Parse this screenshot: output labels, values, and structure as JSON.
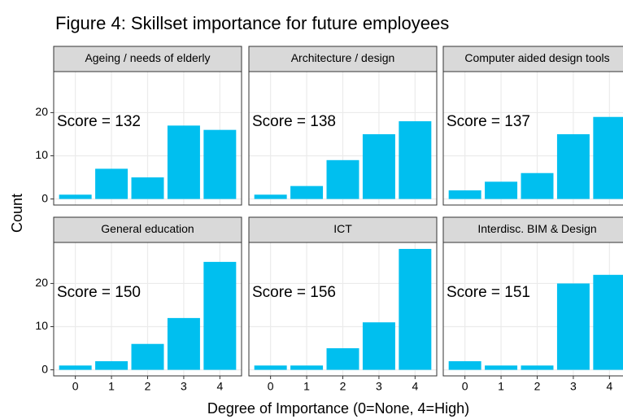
{
  "title": "Figure 4: Skillset importance for future employees",
  "xlabel": "Degree of Importance (0=None, 4=High)",
  "ylabel": "Count",
  "chart_data": [
    {
      "type": "bar",
      "title": "Ageing / needs of elderly",
      "annotation": "Score = 132",
      "categories": [
        "0",
        "1",
        "2",
        "3",
        "4"
      ],
      "values": [
        1,
        7,
        5,
        17,
        16
      ],
      "color": "#00bfef",
      "ylim": [
        -1.4,
        29.5
      ],
      "yticks": [
        0,
        10,
        20
      ],
      "grid": true
    },
    {
      "type": "bar",
      "title": "Architecture / design",
      "annotation": "Score = 138",
      "categories": [
        "0",
        "1",
        "2",
        "3",
        "4"
      ],
      "values": [
        1,
        3,
        9,
        15,
        18
      ],
      "color": "#00bfef",
      "ylim": [
        -1.4,
        29.5
      ],
      "yticks": [
        0,
        10,
        20
      ],
      "grid": true
    },
    {
      "type": "bar",
      "title": "Computer aided design tools",
      "annotation": "Score = 137",
      "categories": [
        "0",
        "1",
        "2",
        "3",
        "4"
      ],
      "values": [
        2,
        4,
        6,
        15,
        19
      ],
      "color": "#00bfef",
      "ylim": [
        -1.4,
        29.5
      ],
      "yticks": [
        0,
        10,
        20
      ],
      "grid": true
    },
    {
      "type": "bar",
      "title": "General education",
      "annotation": "Score = 150",
      "categories": [
        "0",
        "1",
        "2",
        "3",
        "4"
      ],
      "values": [
        1,
        2,
        6,
        12,
        25
      ],
      "color": "#00bfef",
      "ylim": [
        -1.4,
        29.5
      ],
      "yticks": [
        0,
        10,
        20
      ],
      "grid": true
    },
    {
      "type": "bar",
      "title": "ICT",
      "annotation": "Score = 156",
      "categories": [
        "0",
        "1",
        "2",
        "3",
        "4"
      ],
      "values": [
        1,
        1,
        5,
        11,
        28
      ],
      "color": "#00bfef",
      "ylim": [
        -1.4,
        29.5
      ],
      "yticks": [
        0,
        10,
        20
      ],
      "grid": true
    },
    {
      "type": "bar",
      "title": "Interdisc. BIM & Design",
      "annotation": "Score = 151",
      "categories": [
        "0",
        "1",
        "2",
        "3",
        "4"
      ],
      "values": [
        2,
        1,
        1,
        20,
        22
      ],
      "color": "#00bfef",
      "ylim": [
        -1.4,
        29.5
      ],
      "yticks": [
        0,
        10,
        20
      ],
      "grid": true
    }
  ]
}
